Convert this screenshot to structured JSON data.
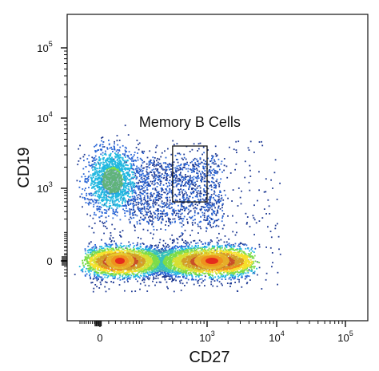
{
  "chart_data": {
    "type": "scatter",
    "xlabel": "CD27",
    "ylabel": "CD19",
    "x_scale": "biexponential",
    "y_scale": "biexponential",
    "x_ticks": [
      {
        "base": "0",
        "exp": ""
      },
      {
        "base": "10",
        "exp": "3"
      },
      {
        "base": "10",
        "exp": "4"
      },
      {
        "base": "10",
        "exp": "5"
      }
    ],
    "y_ticks": [
      {
        "base": "0",
        "exp": ""
      },
      {
        "base": "10",
        "exp": "3"
      },
      {
        "base": "10",
        "exp": "4"
      },
      {
        "base": "10",
        "exp": "5"
      }
    ],
    "gate": {
      "label": "Memory B Cells",
      "x_range": [
        300,
        1000
      ],
      "y_range": [
        500,
        4000
      ]
    },
    "populations": [
      {
        "name": "",
        "center": [
          150,
          0
        ],
        "density": "high"
      },
      {
        "name": "",
        "center": [
          1000,
          0
        ],
        "density": "high"
      },
      {
        "name": "",
        "center": [
          50,
          1000
        ],
        "density": "medium"
      }
    ],
    "colormap": [
      "#1f3a93",
      "#2a66d6",
      "#22b8e0",
      "#7ddc4a",
      "#f6e02a",
      "#f08a1c",
      "#e3211c"
    ]
  }
}
